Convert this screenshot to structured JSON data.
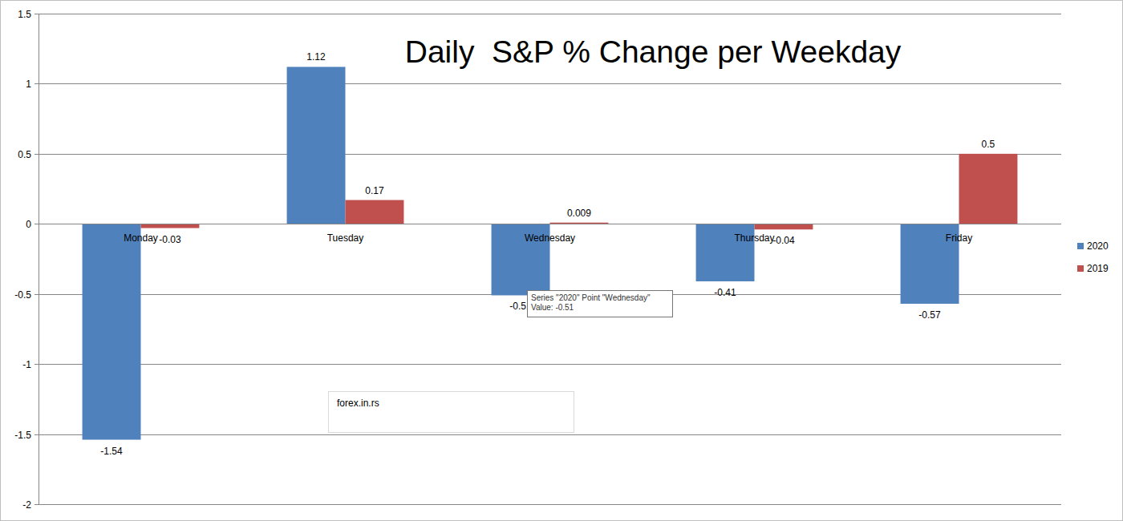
{
  "chart_data": {
    "type": "bar",
    "title": "Daily  S&P % Change per Weekday",
    "categories": [
      "Monday",
      "Tuesday",
      "Wednesday",
      "Thursday",
      "Friday"
    ],
    "series": [
      {
        "name": "2020",
        "color": "#4f81bd",
        "values": [
          -1.54,
          1.12,
          -0.51,
          -0.41,
          -0.57
        ]
      },
      {
        "name": "2019",
        "color": "#c0504d",
        "values": [
          -0.03,
          0.17,
          0.009,
          -0.04,
          0.5
        ]
      }
    ],
    "ylim": [
      -2,
      1.5
    ],
    "yticks": [
      -2,
      -1.5,
      -1,
      -0.5,
      0,
      0.5,
      1,
      1.5
    ],
    "grid": true,
    "legend": "right",
    "data_labels": true,
    "annotations": [
      "forex.in.rs",
      "Series \"2020\" Point \"Wednesday\"",
      "Value: -0.51"
    ]
  }
}
